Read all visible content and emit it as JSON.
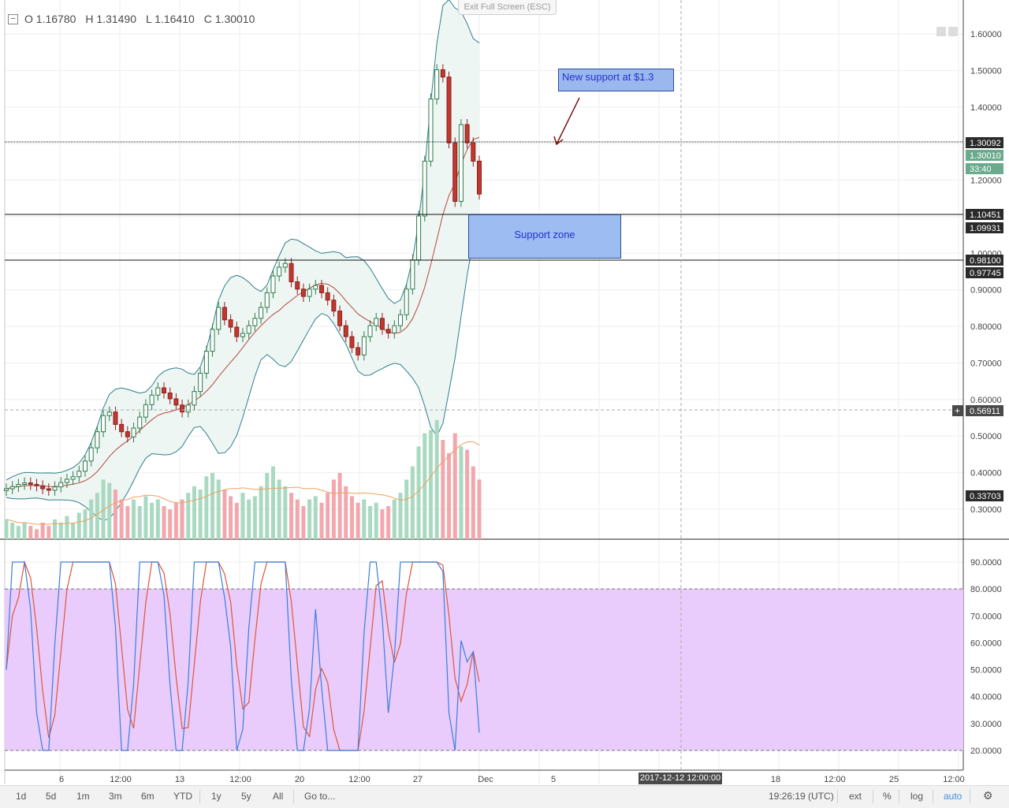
{
  "ohlc": {
    "open": "O 1.16780",
    "high": "H 1.31490",
    "low": "L 1.16410",
    "close": "C 1.30010"
  },
  "exit_fullscreen": "Exit Full Screen (ESC)",
  "annotations": {
    "new_support": "New support at $1.3",
    "support_zone": "Support zone"
  },
  "price_axis": {
    "ticks": [
      "1.60000",
      "1.50000",
      "1.40000",
      "1.30000",
      "1.20000",
      "1.10000",
      "1.00000",
      "0.90000",
      "0.80000",
      "0.70000",
      "0.60000",
      "0.50000",
      "0.40000",
      "0.30000"
    ],
    "flags": [
      {
        "text": "1.30092",
        "bg": "#2b2b2b"
      },
      {
        "text": "1.30010",
        "bg": "#6aab8e"
      },
      {
        "text": "33:40",
        "bg": "#6aab8e"
      },
      {
        "text": "1.10451",
        "bg": "#2b2b2b"
      },
      {
        "text": "1.09931",
        "bg": "#2b2b2b"
      },
      {
        "text": "0.98100",
        "bg": "#2b2b2b"
      },
      {
        "text": "0.97745",
        "bg": "#2b2b2b"
      },
      {
        "text": "0.56911",
        "bg": "#4a4a4a"
      },
      {
        "text": "0.33703",
        "bg": "#2b2b2b"
      }
    ]
  },
  "stoch_axis": {
    "ticks": [
      "90.0000",
      "80.0000",
      "70.0000",
      "60.0000",
      "50.0000",
      "40.0000",
      "30.0000",
      "20.0000"
    ]
  },
  "time_axis": {
    "labels": [
      "6",
      "12:00",
      "13",
      "12:00",
      "20",
      "12:00",
      "27",
      "Dec",
      "5",
      "18",
      "12:00",
      "25",
      "12:00"
    ]
  },
  "crosshair_date": "2017-12-12 12:00:00",
  "toolbar": {
    "ranges": [
      "1d",
      "5d",
      "1m",
      "3m",
      "6m",
      "YTD",
      "1y",
      "5y",
      "All"
    ],
    "goto": "Go to...",
    "clock": "19:26:19 (UTC)",
    "ext": "ext",
    "percent": "%",
    "log": "log",
    "auto": "auto"
  },
  "colors": {
    "up": "#53b987",
    "down": "#eb4d5c",
    "band_fill": "#eef6f3",
    "band_line": "#2f7f8a",
    "stoch_fill": "#e9ccfb",
    "k_line": "#3a7ee0",
    "d_line": "#e0553b",
    "vol_up": "#a9d9c0",
    "vol_down": "#f2a7ad"
  },
  "chart_data": {
    "type": "candlestick",
    "close": [
      0.356,
      0.362,
      0.368,
      0.372,
      0.368,
      0.364,
      0.356,
      0.352,
      0.361,
      0.373,
      0.382,
      0.389,
      0.404,
      0.432,
      0.468,
      0.512,
      0.556,
      0.566,
      0.532,
      0.512,
      0.498,
      0.522,
      0.552,
      0.586,
      0.612,
      0.632,
      0.618,
      0.602,
      0.585,
      0.566,
      0.585,
      0.622,
      0.672,
      0.732,
      0.792,
      0.852,
      0.818,
      0.798,
      0.772,
      0.781,
      0.802,
      0.822,
      0.852,
      0.892,
      0.938,
      0.962,
      0.972,
      0.922,
      0.902,
      0.882,
      0.902,
      0.912,
      0.892,
      0.872,
      0.842,
      0.802,
      0.772,
      0.742,
      0.722,
      0.772,
      0.802,
      0.822,
      0.792,
      0.782,
      0.802,
      0.832,
      0.902,
      0.982,
      1.102,
      1.252,
      1.422,
      1.502,
      1.482,
      1.302,
      1.142,
      1.352,
      1.302,
      1.252,
      1.162
    ],
    "volume": [
      0.06,
      0.05,
      0.04,
      0.05,
      0.04,
      0.03,
      0.05,
      0.04,
      0.06,
      0.05,
      0.07,
      0.05,
      0.08,
      0.09,
      0.12,
      0.14,
      0.18,
      0.17,
      0.15,
      0.12,
      0.1,
      0.12,
      0.1,
      0.13,
      0.11,
      0.12,
      0.1,
      0.09,
      0.11,
      0.12,
      0.14,
      0.16,
      0.15,
      0.19,
      0.2,
      0.18,
      0.15,
      0.13,
      0.11,
      0.14,
      0.12,
      0.13,
      0.16,
      0.2,
      0.22,
      0.18,
      0.16,
      0.14,
      0.12,
      0.1,
      0.12,
      0.13,
      0.11,
      0.14,
      0.18,
      0.2,
      0.16,
      0.13,
      0.11,
      0.12,
      0.1,
      0.11,
      0.09,
      0.1,
      0.12,
      0.14,
      0.18,
      0.22,
      0.28,
      0.32,
      0.33,
      0.36,
      0.3,
      0.26,
      0.32,
      0.28,
      0.27,
      0.22,
      0.18
    ],
    "ylim": [
      0.2,
      1.65
    ],
    "x_labels": [
      "6",
      "12:00",
      "13",
      "12:00",
      "20",
      "12:00",
      "27",
      "Dec"
    ]
  }
}
